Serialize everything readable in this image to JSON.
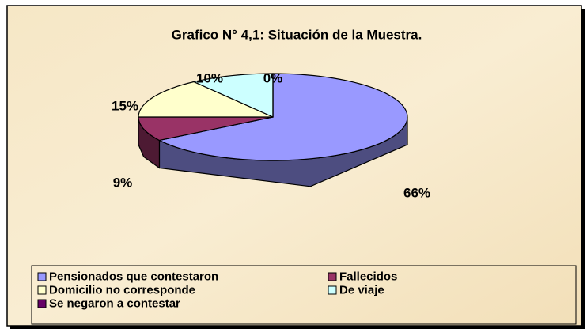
{
  "chart_data": {
    "type": "pie3d",
    "title": "Grafico N° 4,1: Situación de la Muestra.",
    "categories": [
      "Pensionados que contestaron",
      "Fallecidos",
      "Domicilio no corresponde",
      "De viaje",
      "Se negaron a contestar"
    ],
    "values": [
      66,
      9,
      15,
      10,
      0
    ],
    "value_labels": [
      "66%",
      "9%",
      "15%",
      "10%",
      "0%"
    ],
    "colors": [
      "#9999ff",
      "#993366",
      "#ffffcc",
      "#ccffff",
      "#660066"
    ],
    "legend": "bottom"
  }
}
